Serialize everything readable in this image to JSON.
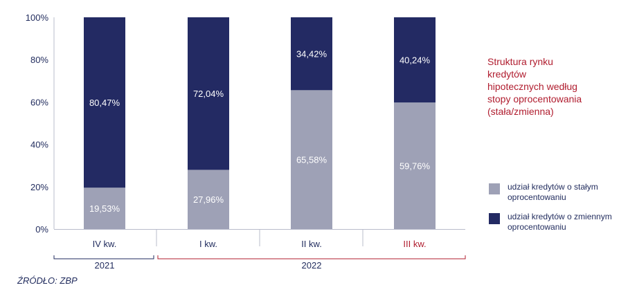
{
  "chart_data": {
    "type": "bar",
    "stacked": true,
    "categories": [
      "IV kw.",
      "I kw.",
      "II kw.",
      "III kw."
    ],
    "groups": [
      {
        "label": "2021",
        "categories": [
          "IV kw."
        ]
      },
      {
        "label": "2022",
        "categories": [
          "I kw.",
          "II kw.",
          "III kw."
        ]
      }
    ],
    "series": [
      {
        "name": "udział kredytów o stałym oprocentowaniu",
        "values": [
          19.53,
          27.96,
          65.58,
          59.76
        ],
        "labels": [
          "19,53%",
          "27,96%",
          "65,58%",
          "59,76%"
        ],
        "color": "#9ea1b6"
      },
      {
        "name": "udział kredytów o zmiennym oprocentowaniu",
        "values": [
          80.47,
          72.04,
          34.42,
          40.24
        ],
        "labels": [
          "80,47%",
          "72,04%",
          "34,42%",
          "40,24%"
        ],
        "color": "#232a63"
      }
    ],
    "y_ticks": [
      "100%",
      "80%",
      "60%",
      "40%",
      "20%",
      "0%"
    ],
    "ylim": [
      0,
      100
    ],
    "title": "Struktura rynku kredytów hipotecznych według stopy oprocentowania (stała/zmienna)",
    "legend_position": "right",
    "grid": false,
    "highlight_category": "III kw.",
    "highlight_color": "#b01c2e"
  },
  "legend": {
    "fixed": "udział kredytów o stałym oprocentowaniu",
    "variable": "udział kredytów o zmiennym oprocentowaniu"
  },
  "source": "ŹRÓDŁO: ZBP"
}
